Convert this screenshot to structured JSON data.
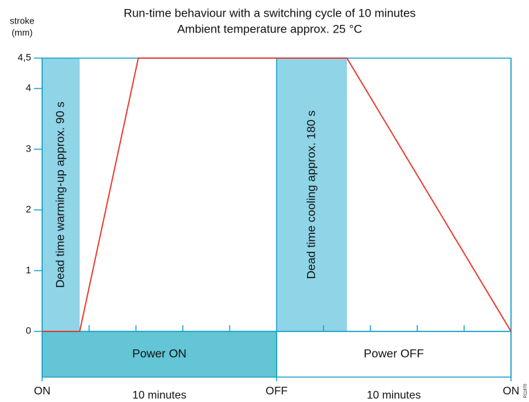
{
  "chart_data": {
    "type": "line",
    "title": "Run-time behaviour with a switching cycle of 10 minutes",
    "subtitle": "Ambient temperature approx. 25 °C",
    "ylabel": [
      "stroke",
      "(mm)"
    ],
    "x": [
      0,
      1.6,
      4.1,
      13,
      20
    ],
    "series": [
      {
        "color": "#e8382c",
        "values": [
          0,
          0,
          4.5,
          4.5,
          0
        ]
      }
    ],
    "xlim": [
      0,
      20
    ],
    "ylim": [
      0,
      4.5
    ],
    "xticks": [
      {
        "value": 0,
        "label": "ON"
      },
      {
        "value": 10,
        "label": "OFF"
      },
      {
        "value": 20,
        "label": "ON"
      }
    ],
    "minor_xticks": [
      2,
      4,
      6,
      8,
      12,
      14,
      16,
      18
    ],
    "yticks": [
      0,
      1,
      2,
      3,
      4,
      {
        "value": 4.5,
        "label": "4,5"
      }
    ],
    "axis_color": "#1fa3c9",
    "bands": [
      {
        "label": "Dead time warming-up approx. 90 s",
        "x": [
          0,
          1.6
        ],
        "color": "#8fd4e7"
      },
      {
        "label": "Dead time cooling approx. 180 s",
        "x": [
          10,
          13
        ],
        "color": "#8fd4e7"
      }
    ],
    "power_bars": [
      {
        "label": "Power ON",
        "x": [
          0,
          10
        ],
        "color": "#63c5d5"
      },
      {
        "label": "Power OFF",
        "x": [
          10,
          20
        ],
        "color": "#ffffff"
      }
    ],
    "duration_labels": [
      {
        "label": "10 minutes",
        "x": 5
      },
      {
        "label": "10 minutes",
        "x": 15
      }
    ],
    "code": "R11870"
  }
}
